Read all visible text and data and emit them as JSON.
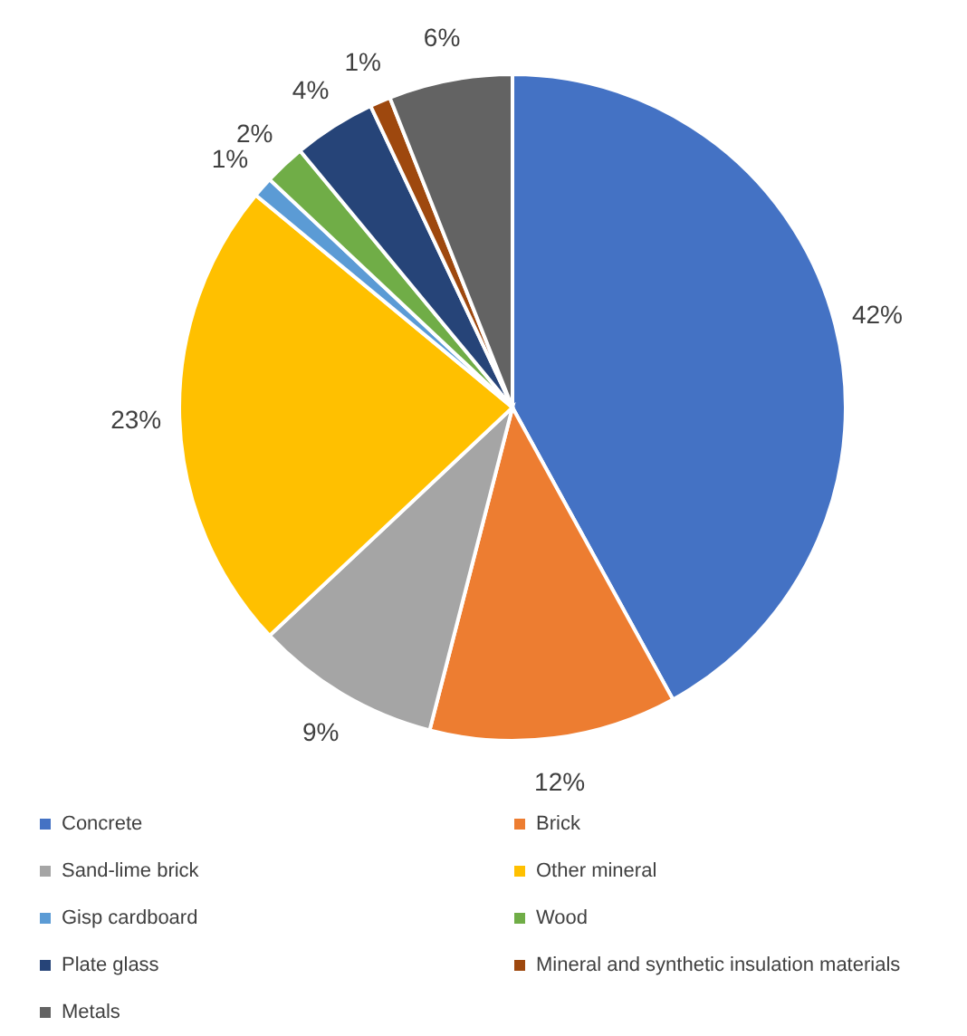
{
  "chart_data": {
    "type": "pie",
    "categories": [
      "Concrete",
      "Brick",
      "Sand-lime brick",
      "Other mineral",
      "Gisp cardboard",
      "Wood",
      "Plate glass",
      "Mineral and synthetic insulation materials",
      "Metals"
    ],
    "values": [
      42,
      12,
      9,
      23,
      1,
      2,
      4,
      1,
      6
    ],
    "value_labels": [
      "42%",
      "12%",
      "9%",
      "23%",
      "1%",
      "2%",
      "4%",
      "1%",
      "6%"
    ],
    "colors": [
      "#4472c4",
      "#ed7d31",
      "#a5a5a5",
      "#ffc000",
      "#5b9bd5",
      "#70ad47",
      "#264478",
      "#9e480e",
      "#636363"
    ],
    "legend": "bottom"
  }
}
